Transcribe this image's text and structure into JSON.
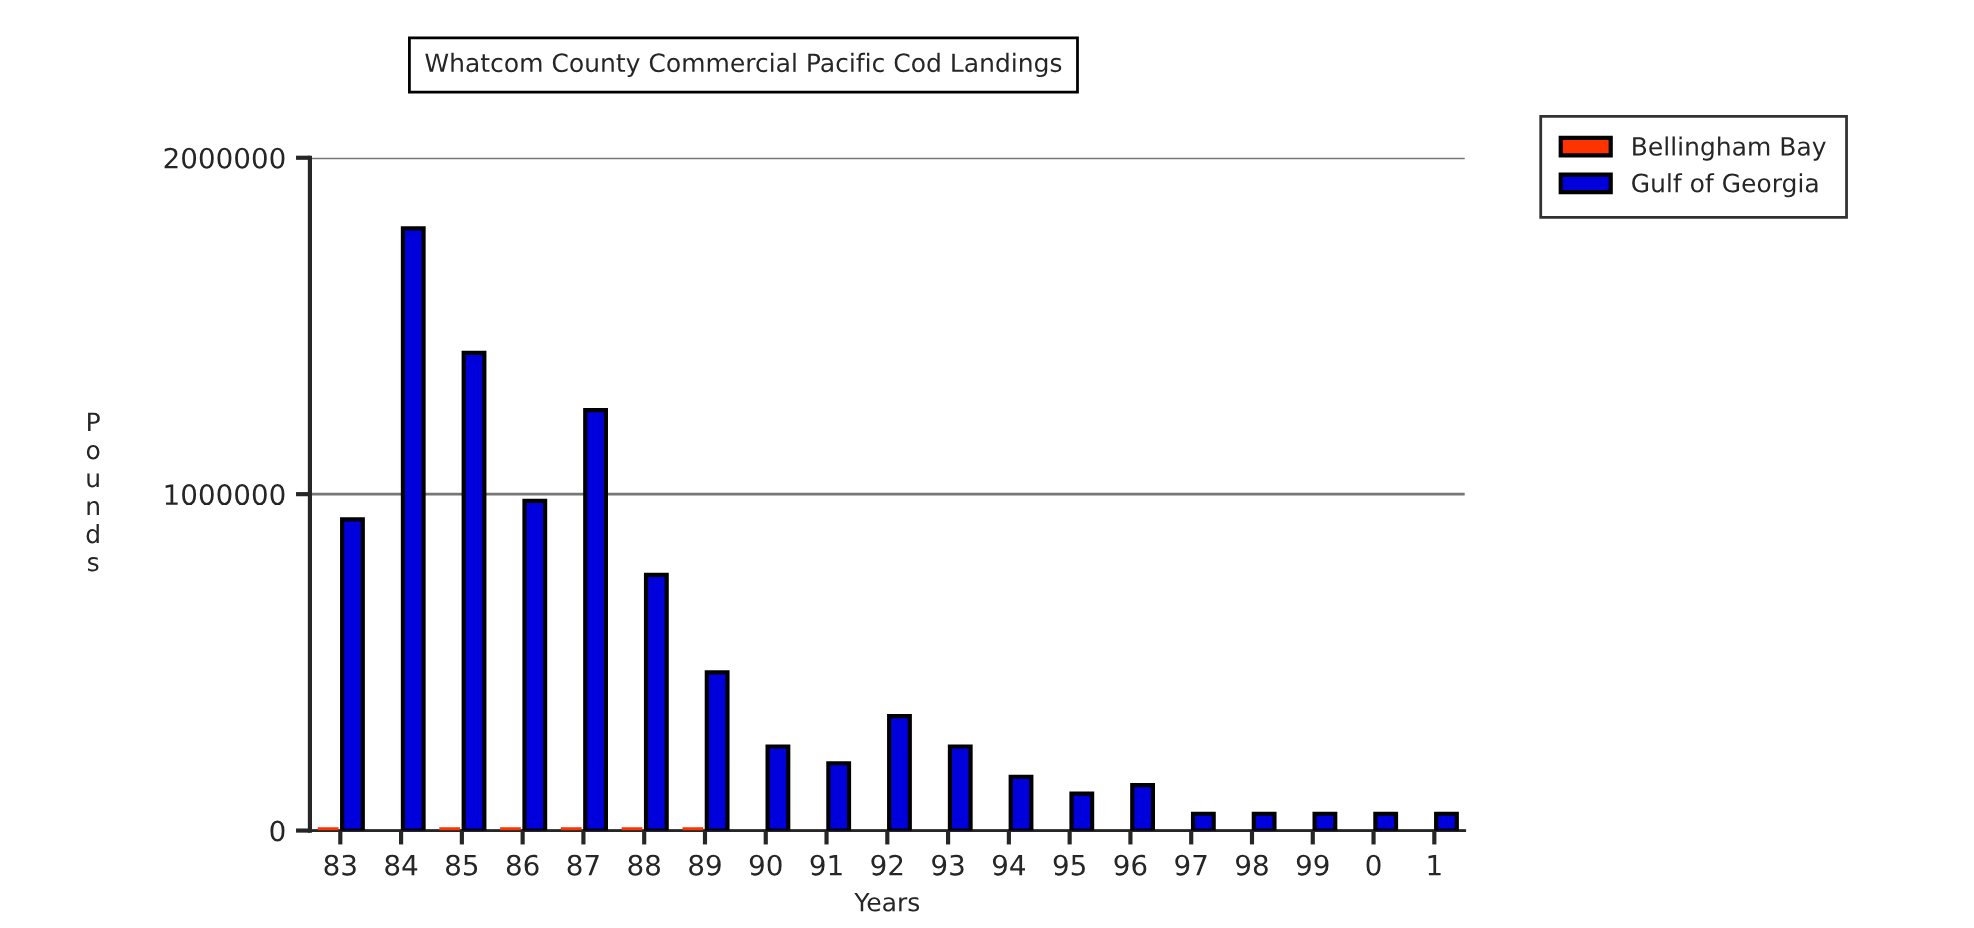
{
  "chart_data": {
    "type": "bar",
    "title": "Whatcom County Commercial Pacific Cod Landings",
    "xlabel": "Years",
    "ylabel": "Pounds",
    "categories": [
      "83",
      "84",
      "85",
      "86",
      "87",
      "88",
      "89",
      "90",
      "91",
      "92",
      "93",
      "94",
      "95",
      "96",
      "97",
      "98",
      "99",
      "0",
      "1"
    ],
    "series": [
      {
        "name": "Bellingham Bay",
        "color": "#ff3300",
        "values": [
          10000,
          null,
          10000,
          10000,
          10000,
          10000,
          10000,
          null,
          null,
          null,
          null,
          null,
          null,
          null,
          null,
          null,
          null,
          null,
          null
        ]
      },
      {
        "name": "Gulf of Georgia",
        "color": "#0000dd",
        "values": [
          925000,
          1790000,
          1420000,
          980000,
          1250000,
          760000,
          470000,
          250000,
          200000,
          340000,
          250000,
          160000,
          110000,
          135000,
          50000,
          50000,
          50000,
          50000,
          50000
        ]
      }
    ],
    "ylim": [
      0,
      2000000
    ],
    "yticks": [
      0,
      1000000,
      2000000
    ],
    "grid": "y",
    "legend": "top right"
  }
}
